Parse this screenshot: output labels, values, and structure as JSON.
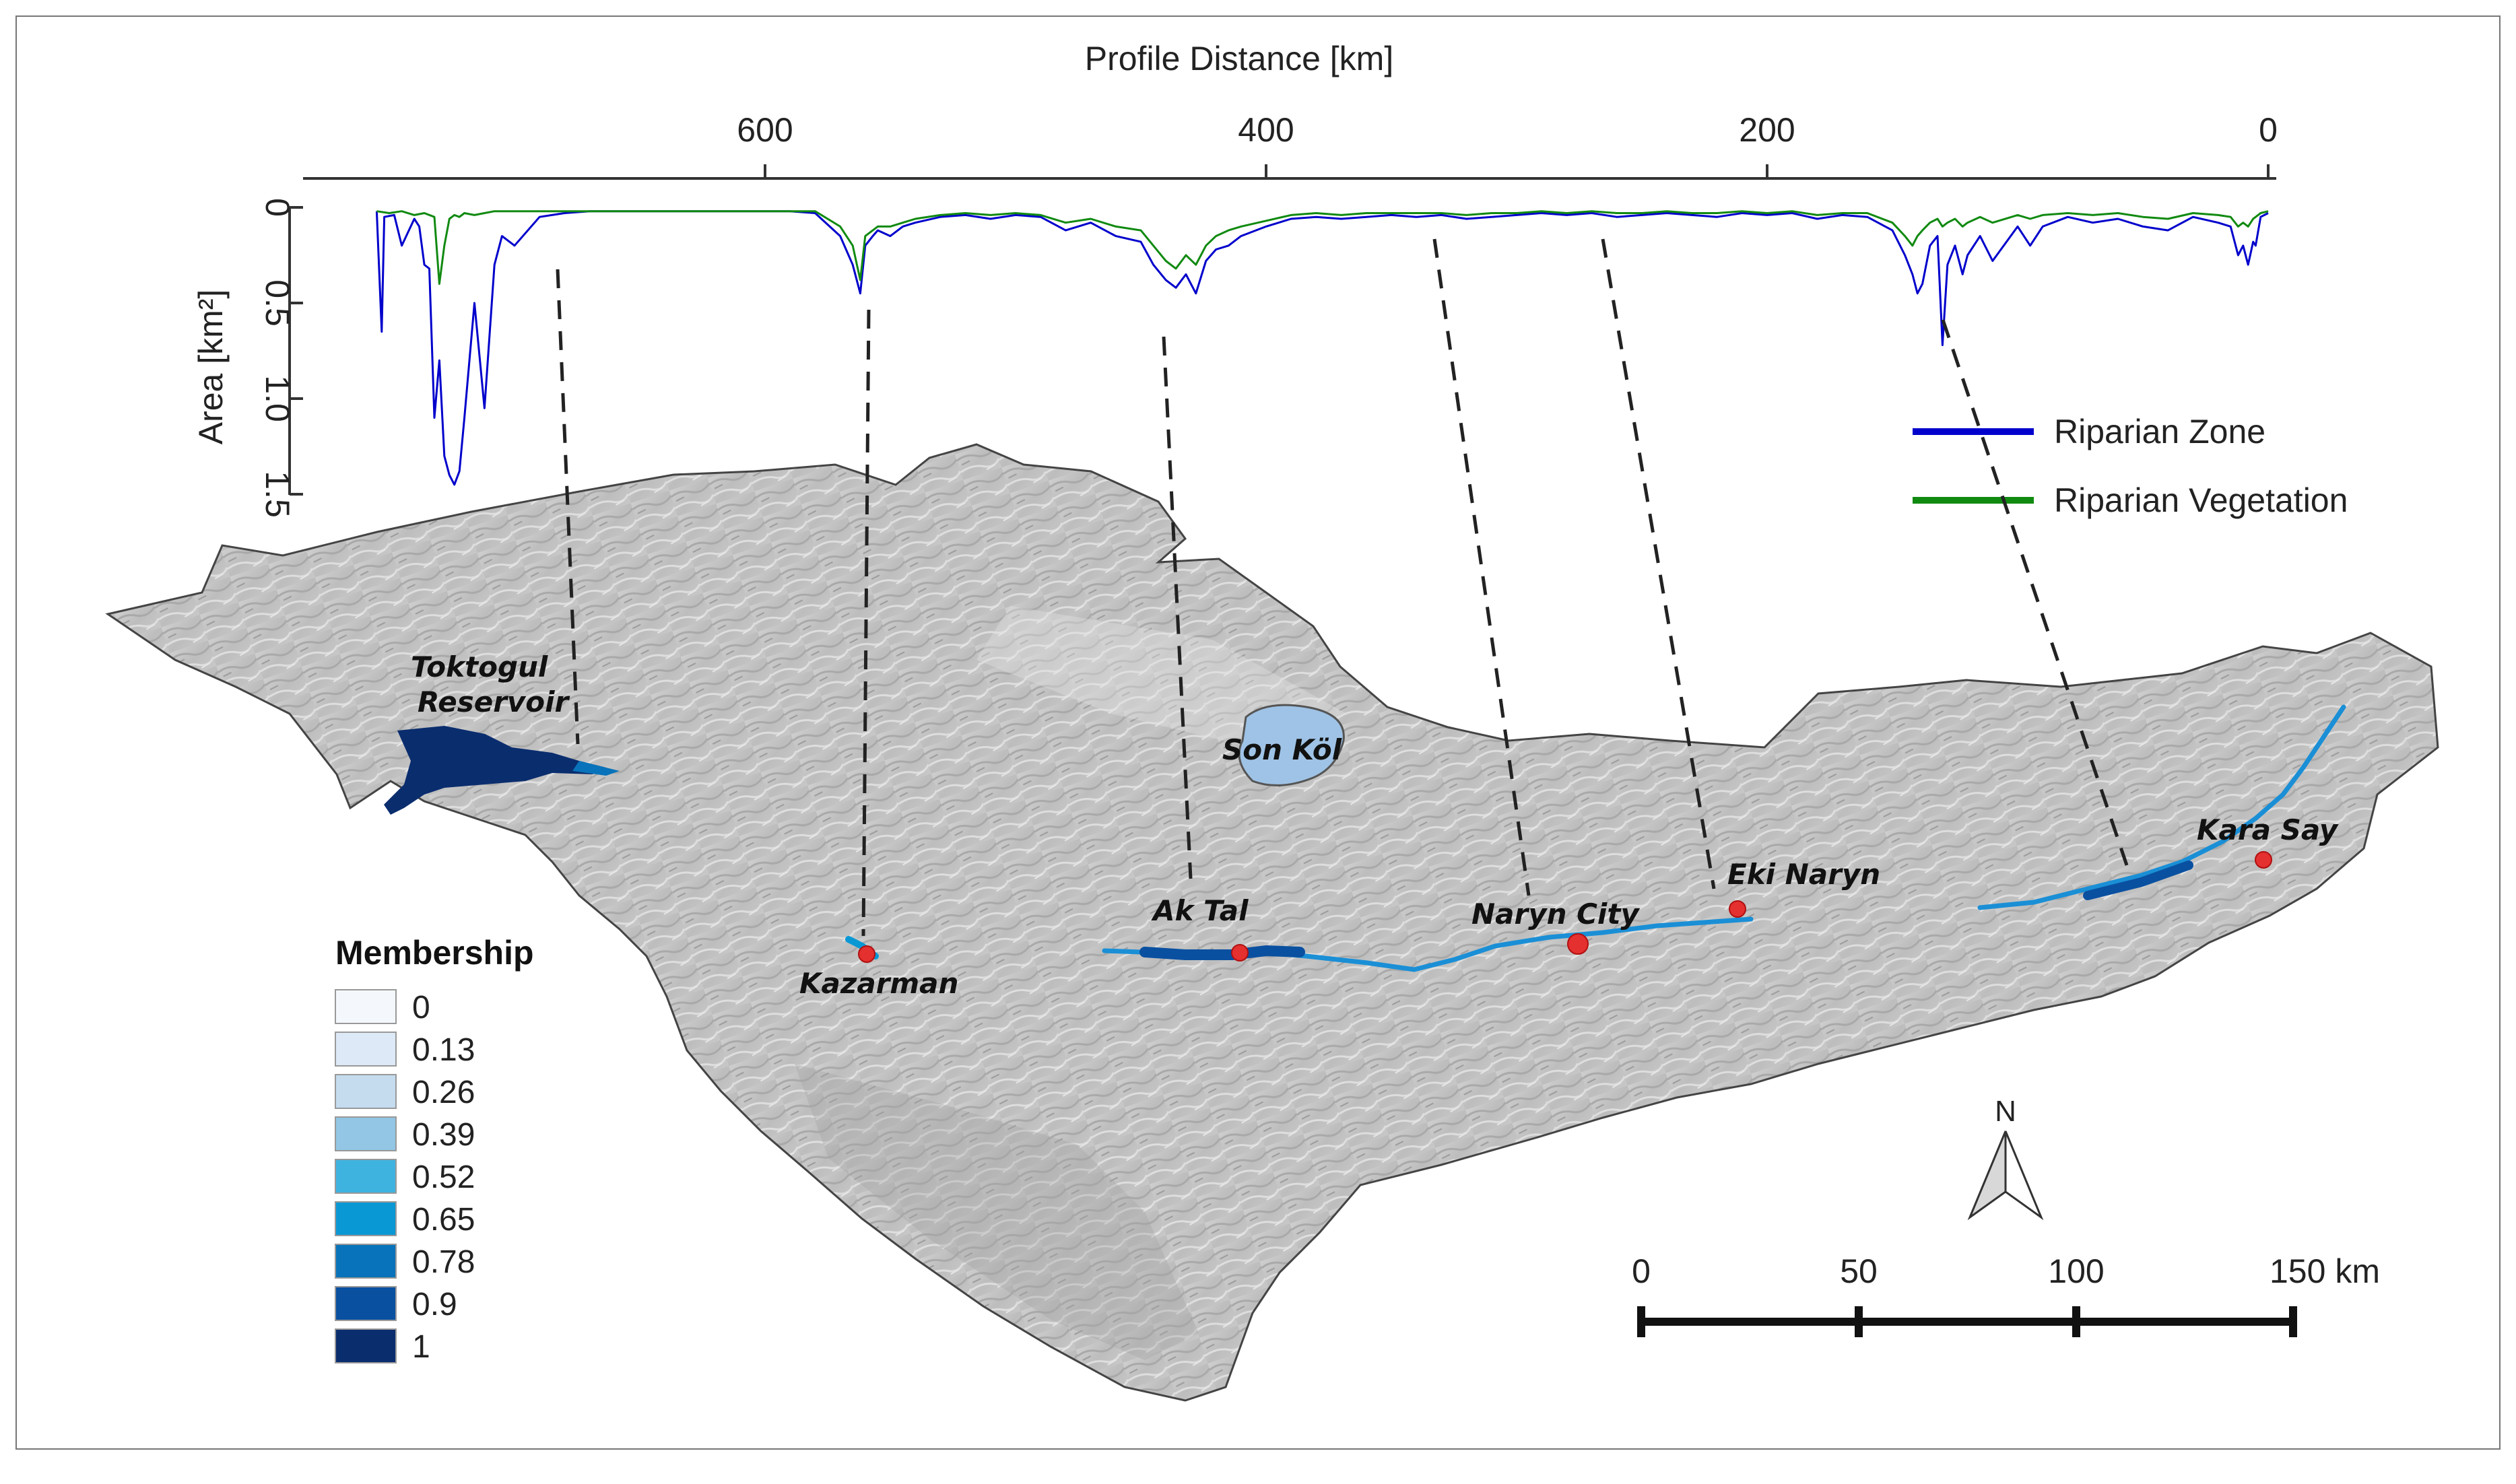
{
  "profile": {
    "x_axis_title": "Profile Distance [km]",
    "x_ticks": [
      "600",
      "400",
      "200",
      "0"
    ],
    "y_axis_title": "Area [km²]",
    "y_ticks": [
      "0",
      "0.5",
      "1.0",
      "1.5"
    ],
    "legend": [
      {
        "label": "Riparian Zone",
        "color": "#0000cc"
      },
      {
        "label": "Riparian Vegetation",
        "color": "#118a11"
      }
    ],
    "x_range_km": [
      785,
      0
    ],
    "y_range_km2": [
      0,
      1.5
    ]
  },
  "chart_data": {
    "type": "line",
    "xlabel": "Profile Distance [km]",
    "ylabel": "Area [km²]",
    "xlim": [
      785,
      0
    ],
    "ylim": [
      0,
      1.5
    ],
    "x_reversed": true,
    "y_inverted": true,
    "series": [
      {
        "name": "Riparian Zone",
        "color": "#0000cc",
        "x": [
          755,
          753,
          752,
          748,
          745,
          740,
          738,
          736,
          734,
          732,
          730,
          728,
          726,
          724,
          722,
          720,
          716,
          712,
          708,
          705,
          700,
          690,
          680,
          670,
          660,
          650,
          640,
          630,
          620,
          610,
          600,
          590,
          580,
          570,
          565,
          562,
          560,
          557,
          555,
          550,
          545,
          540,
          530,
          520,
          510,
          500,
          490,
          480,
          470,
          460,
          450,
          445,
          440,
          436,
          432,
          428,
          424,
          420,
          415,
          410,
          400,
          390,
          380,
          370,
          360,
          350,
          340,
          330,
          320,
          310,
          300,
          290,
          280,
          270,
          260,
          250,
          240,
          230,
          220,
          210,
          200,
          190,
          180,
          170,
          160,
          150,
          145,
          142,
          140,
          138,
          135,
          132,
          130,
          128,
          125,
          122,
          120,
          115,
          110,
          100,
          95,
          90,
          80,
          70,
          60,
          50,
          40,
          30,
          20,
          15,
          12,
          10,
          8,
          6,
          5,
          3,
          0
        ],
        "y": [
          0.02,
          0.65,
          0.05,
          0.04,
          0.2,
          0.06,
          0.1,
          0.3,
          0.32,
          1.1,
          0.8,
          1.3,
          1.4,
          1.45,
          1.38,
          1.1,
          0.5,
          1.05,
          0.3,
          0.15,
          0.2,
          0.05,
          0.03,
          0.02,
          0.02,
          0.02,
          0.02,
          0.02,
          0.02,
          0.02,
          0.02,
          0.02,
          0.03,
          0.15,
          0.3,
          0.45,
          0.2,
          0.15,
          0.12,
          0.15,
          0.1,
          0.08,
          0.05,
          0.04,
          0.06,
          0.04,
          0.05,
          0.12,
          0.08,
          0.15,
          0.18,
          0.3,
          0.38,
          0.42,
          0.35,
          0.45,
          0.28,
          0.22,
          0.2,
          0.15,
          0.1,
          0.06,
          0.05,
          0.06,
          0.05,
          0.04,
          0.05,
          0.04,
          0.06,
          0.05,
          0.04,
          0.03,
          0.04,
          0.03,
          0.05,
          0.04,
          0.03,
          0.04,
          0.05,
          0.03,
          0.04,
          0.03,
          0.06,
          0.04,
          0.05,
          0.12,
          0.25,
          0.35,
          0.45,
          0.4,
          0.2,
          0.15,
          0.72,
          0.3,
          0.2,
          0.35,
          0.25,
          0.15,
          0.28,
          0.1,
          0.2,
          0.1,
          0.05,
          0.08,
          0.06,
          0.1,
          0.12,
          0.05,
          0.08,
          0.1,
          0.25,
          0.2,
          0.3,
          0.18,
          0.2,
          0.05,
          0.03
        ]
      },
      {
        "name": "Riparian Vegetation",
        "color": "#118a11",
        "x": [
          755,
          750,
          745,
          740,
          736,
          732,
          730,
          728,
          726,
          724,
          722,
          720,
          716,
          712,
          708,
          705,
          700,
          690,
          680,
          670,
          660,
          650,
          640,
          630,
          620,
          610,
          600,
          590,
          580,
          570,
          565,
          562,
          560,
          557,
          555,
          550,
          545,
          540,
          530,
          520,
          510,
          500,
          490,
          480,
          470,
          460,
          450,
          445,
          440,
          436,
          432,
          428,
          424,
          420,
          415,
          410,
          400,
          390,
          380,
          370,
          360,
          350,
          340,
          330,
          320,
          310,
          300,
          290,
          280,
          270,
          260,
          250,
          240,
          230,
          220,
          210,
          200,
          190,
          180,
          170,
          160,
          150,
          145,
          142,
          140,
          138,
          135,
          132,
          130,
          128,
          125,
          122,
          120,
          115,
          110,
          100,
          95,
          90,
          80,
          70,
          60,
          50,
          40,
          30,
          20,
          15,
          12,
          10,
          8,
          6,
          5,
          3,
          0
        ],
        "y": [
          0.02,
          0.03,
          0.02,
          0.04,
          0.03,
          0.05,
          0.4,
          0.2,
          0.06,
          0.04,
          0.05,
          0.03,
          0.04,
          0.03,
          0.02,
          0.02,
          0.02,
          0.02,
          0.02,
          0.02,
          0.02,
          0.02,
          0.02,
          0.02,
          0.02,
          0.02,
          0.02,
          0.02,
          0.02,
          0.1,
          0.2,
          0.38,
          0.15,
          0.12,
          0.1,
          0.1,
          0.08,
          0.06,
          0.04,
          0.03,
          0.04,
          0.03,
          0.04,
          0.08,
          0.06,
          0.1,
          0.12,
          0.2,
          0.28,
          0.32,
          0.25,
          0.3,
          0.2,
          0.15,
          0.12,
          0.1,
          0.07,
          0.04,
          0.03,
          0.04,
          0.03,
          0.03,
          0.03,
          0.03,
          0.04,
          0.03,
          0.03,
          0.02,
          0.03,
          0.02,
          0.03,
          0.03,
          0.02,
          0.03,
          0.03,
          0.02,
          0.03,
          0.02,
          0.04,
          0.03,
          0.03,
          0.08,
          0.15,
          0.2,
          0.15,
          0.12,
          0.08,
          0.06,
          0.1,
          0.08,
          0.06,
          0.1,
          0.08,
          0.05,
          0.08,
          0.04,
          0.06,
          0.04,
          0.03,
          0.04,
          0.03,
          0.05,
          0.06,
          0.03,
          0.04,
          0.05,
          0.1,
          0.08,
          0.1,
          0.06,
          0.05,
          0.03,
          0.02
        ]
      }
    ]
  },
  "map": {
    "places": [
      {
        "name": "Toktogul",
        "line2": "Reservoir",
        "has_dot": false
      },
      {
        "name": "Son Köl",
        "has_dot": false
      },
      {
        "name": "Kazarman",
        "has_dot": true
      },
      {
        "name": "Ak Tal",
        "has_dot": true
      },
      {
        "name": "Naryn City",
        "has_dot": true
      },
      {
        "name": "Eki Naryn",
        "has_dot": true
      },
      {
        "name": "Kara Say",
        "has_dot": true
      }
    ],
    "north_label": "N",
    "scale_bar": {
      "labels": [
        "0",
        "50",
        "100",
        "150 km"
      ]
    }
  },
  "membership_legend": {
    "title": "Membership",
    "classes": [
      {
        "label": "0",
        "color": "#f4f8fd"
      },
      {
        "label": "0.13",
        "color": "#dde9f6"
      },
      {
        "label": "0.26",
        "color": "#c4dcee"
      },
      {
        "label": "0.39",
        "color": "#92c6e4"
      },
      {
        "label": "0.52",
        "color": "#3fb3e0"
      },
      {
        "label": "0.65",
        "color": "#0a98d4"
      },
      {
        "label": "0.78",
        "color": "#0873ba"
      },
      {
        "label": "0.9",
        "color": "#0a50a0"
      },
      {
        "label": "1",
        "color": "#0a2d6e"
      }
    ]
  }
}
